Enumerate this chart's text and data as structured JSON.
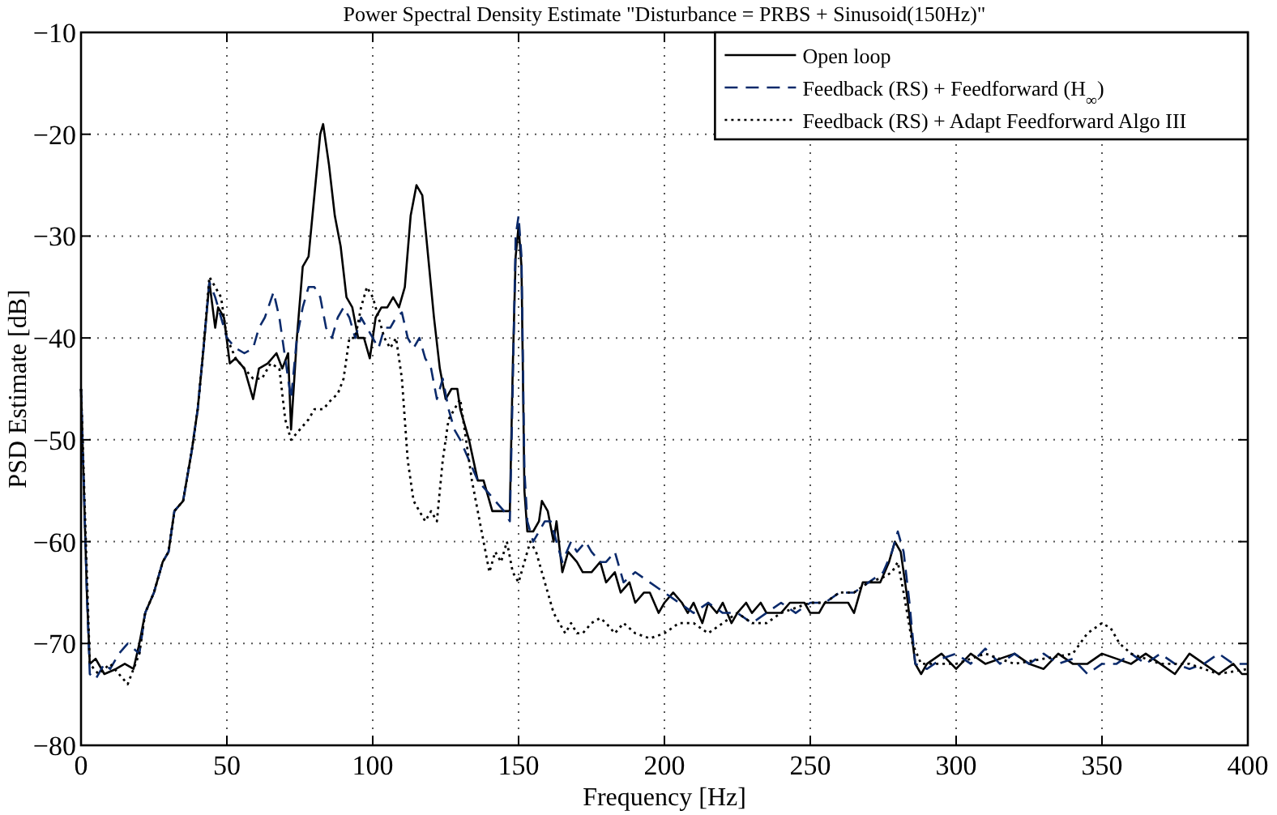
{
  "chart_data": {
    "type": "line",
    "title": "Power Spectral Density Estimate \"Disturbance = PRBS + Sinusoid(150Hz)\"",
    "xlabel": "Frequency [Hz]",
    "ylabel": "PSD Estimate [dB]",
    "xlim": [
      0,
      400
    ],
    "xticks": [
      0,
      50,
      100,
      150,
      200,
      250,
      300,
      350,
      400
    ],
    "ylim": [
      -80,
      -10
    ],
    "yticks": [
      -80,
      -70,
      -60,
      -50,
      -40,
      -30,
      -20,
      -10
    ],
    "grid": true,
    "legend": "top right",
    "series": [
      {
        "name": "Open loop",
        "color": "#000000",
        "line_style": "solid",
        "x": [
          0,
          1,
          2,
          3,
          5,
          8,
          12,
          15,
          18,
          20,
          22,
          25,
          28,
          30,
          32,
          35,
          38,
          40,
          42,
          44,
          46,
          47,
          49,
          51,
          53,
          56,
          59,
          61,
          64,
          67,
          69,
          71,
          72,
          74,
          76,
          78,
          80,
          82,
          83,
          85,
          87,
          89,
          91,
          93,
          95,
          97,
          99,
          101,
          103,
          105,
          107,
          109,
          111,
          113,
          115,
          117,
          119,
          121,
          123,
          125,
          127,
          129,
          130,
          133,
          136,
          138,
          141,
          143,
          145,
          147,
          148,
          149,
          150,
          151,
          152,
          153,
          155,
          157,
          158,
          160,
          162,
          163,
          165,
          167,
          170,
          172,
          175,
          178,
          180,
          183,
          185,
          188,
          190,
          193,
          195,
          198,
          200,
          203,
          206,
          208,
          210,
          213,
          215,
          218,
          220,
          223,
          225,
          228,
          230,
          233,
          235,
          238,
          240,
          243,
          245,
          248,
          250,
          253,
          255,
          258,
          260,
          263,
          265,
          268,
          271,
          274,
          277,
          279,
          281,
          283,
          286,
          288,
          290,
          295,
          300,
          305,
          310,
          315,
          320,
          325,
          330,
          335,
          340,
          345,
          350,
          355,
          360,
          365,
          370,
          375,
          380,
          385,
          390,
          395,
          398,
          400
        ],
        "values": [
          -45,
          -55,
          -65,
          -72,
          -71.5,
          -73,
          -72.5,
          -72,
          -72.5,
          -70,
          -67,
          -65,
          -62,
          -61,
          -57,
          -56,
          -51,
          -47,
          -41,
          -34.5,
          -39,
          -37,
          -38,
          -42.5,
          -42,
          -43,
          -46,
          -43,
          -42.5,
          -41.5,
          -43,
          -41.5,
          -49,
          -40,
          -33,
          -32,
          -26,
          -20,
          -19,
          -23,
          -28,
          -31,
          -36,
          -37,
          -40,
          -40,
          -42,
          -38,
          -37,
          -37,
          -36,
          -37,
          -35,
          -28,
          -25,
          -26,
          -32,
          -38,
          -43,
          -46,
          -45,
          -45,
          -47,
          -50,
          -54,
          -54,
          -57,
          -57,
          -57,
          -57,
          -43,
          -32,
          -29,
          -33,
          -55,
          -59,
          -59,
          -58,
          -56,
          -57,
          -60,
          -58,
          -63,
          -61,
          -62,
          -63,
          -63,
          -62,
          -64,
          -63,
          -65,
          -64,
          -66,
          -65,
          -65,
          -67,
          -66,
          -65,
          -66,
          -67,
          -66,
          -68,
          -66,
          -67,
          -66,
          -68,
          -67,
          -66,
          -67,
          -66,
          -67,
          -67,
          -67,
          -66,
          -66,
          -66,
          -67,
          -67,
          -66,
          -66,
          -66,
          -66,
          -67,
          -64,
          -64,
          -64,
          -62,
          -60,
          -61,
          -65,
          -72,
          -73,
          -72,
          -71,
          -72.5,
          -71,
          -72,
          -71.5,
          -71,
          -72,
          -72.5,
          -71,
          -72,
          -72,
          -71,
          -71.5,
          -72,
          -71,
          -72,
          -73,
          -71,
          -72,
          -73,
          -72,
          -73,
          -73
        ]
      },
      {
        "name": "Feedback (RS) + Feedforward (H$_{∞}$)",
        "color": "#0b2a6b",
        "line_style": "dashed",
        "x": [
          0,
          2,
          3,
          5,
          8,
          10,
          13,
          16,
          20,
          22,
          25,
          28,
          30,
          32,
          35,
          38,
          40,
          42,
          44,
          46,
          50,
          53,
          56,
          59,
          61,
          63,
          66,
          68,
          70,
          72,
          74,
          76,
          78,
          80,
          82,
          84,
          86,
          88,
          90,
          92,
          94,
          96,
          98,
          100,
          102,
          104,
          106,
          108,
          110,
          112,
          114,
          116,
          118,
          120,
          122,
          124,
          126,
          128,
          130,
          133,
          136,
          139,
          142,
          145,
          147,
          148,
          149,
          150,
          151,
          152,
          153,
          155,
          157,
          159,
          161,
          163,
          165,
          168,
          170,
          173,
          175,
          178,
          180,
          183,
          186,
          190,
          195,
          200,
          205,
          210,
          215,
          220,
          225,
          230,
          235,
          240,
          245,
          250,
          255,
          260,
          265,
          270,
          275,
          278,
          280,
          282,
          284,
          286,
          290,
          295,
          300,
          305,
          310,
          315,
          320,
          325,
          330,
          335,
          340,
          345,
          350,
          355,
          360,
          365,
          370,
          375,
          380,
          385,
          390,
          395,
          400
        ],
        "values": [
          -45,
          -65,
          -73,
          -73.5,
          -72,
          -72.5,
          -71,
          -70,
          -71,
          -67,
          -65,
          -62,
          -61,
          -57,
          -56,
          -51,
          -47,
          -41,
          -34.5,
          -36,
          -40,
          -41,
          -41.5,
          -41,
          -39,
          -38,
          -35.5,
          -38,
          -42,
          -46,
          -40,
          -37,
          -35,
          -35,
          -36,
          -39,
          -40,
          -38,
          -37,
          -38,
          -40,
          -38,
          -39,
          -40,
          -41,
          -39,
          -39,
          -38,
          -37.5,
          -40,
          -41,
          -40,
          -42,
          -43,
          -46,
          -44,
          -47,
          -49,
          -50,
          -52,
          -54,
          -55,
          -56,
          -57,
          -58,
          -45,
          -30,
          -28,
          -32,
          -53,
          -58,
          -60,
          -59,
          -58,
          -58,
          -60,
          -62,
          -60,
          -61,
          -60,
          -61,
          -62,
          -62,
          -61,
          -64,
          -63,
          -64,
          -65,
          -66,
          -67,
          -66,
          -67,
          -67,
          -68,
          -67,
          -66,
          -67,
          -66,
          -66,
          -65,
          -65,
          -64,
          -63,
          -61,
          -59,
          -61,
          -66,
          -72,
          -72.5,
          -71.5,
          -71,
          -72,
          -70.5,
          -72,
          -71,
          -72,
          -71,
          -72,
          -71.5,
          -73,
          -72,
          -72,
          -71,
          -72,
          -71,
          -72,
          -72.5,
          -72,
          -71,
          -72,
          -72
        ]
      },
      {
        "name": "Feedback (RS) + Adapt Feedforward Algo III",
        "color": "#000000",
        "line_style": "dotted",
        "x": [
          0,
          3,
          6,
          10,
          13,
          16,
          20,
          22,
          25,
          28,
          30,
          32,
          35,
          38,
          40,
          42,
          44,
          46,
          48,
          50,
          53,
          56,
          59,
          62,
          65,
          68,
          70,
          72,
          75,
          78,
          80,
          83,
          86,
          88,
          90,
          92,
          94,
          96,
          98,
          100,
          102,
          104,
          106,
          108,
          110,
          112,
          114,
          116,
          118,
          120,
          122,
          124,
          126,
          128,
          130,
          132,
          134,
          136,
          138,
          140,
          142,
          144,
          146,
          148,
          150,
          152,
          154,
          156,
          158,
          160,
          162,
          164,
          166,
          168,
          170,
          172,
          175,
          178,
          180,
          183,
          186,
          190,
          195,
          200,
          205,
          210,
          215,
          220,
          225,
          230,
          235,
          240,
          245,
          250,
          255,
          260,
          265,
          270,
          275,
          278,
          280,
          282,
          285,
          288,
          290,
          300,
          310,
          320,
          330,
          340,
          345,
          350,
          353,
          356,
          360,
          370,
          380,
          390,
          400
        ],
        "values": [
          -45,
          -72,
          -73,
          -72,
          -73,
          -74,
          -71,
          -67,
          -65,
          -62,
          -61,
          -57,
          -56,
          -51,
          -47,
          -41,
          -34,
          -35,
          -36,
          -40,
          -42,
          -43,
          -44,
          -44,
          -42.5,
          -43,
          -48,
          -50,
          -49,
          -48,
          -47,
          -47,
          -46,
          -45.5,
          -44,
          -40,
          -40,
          -37,
          -35,
          -36,
          -38,
          -40,
          -41,
          -40,
          -44,
          -52,
          -56,
          -57,
          -58,
          -57,
          -58,
          -52,
          -48,
          -47,
          -46,
          -50,
          -54,
          -57,
          -60,
          -63,
          -61,
          -62,
          -60,
          -63,
          -64,
          -62,
          -60,
          -61,
          -63,
          -65,
          -67,
          -68,
          -69,
          -68,
          -69,
          -69,
          -68,
          -67.5,
          -68,
          -69,
          -68,
          -69,
          -69.5,
          -69,
          -68,
          -68,
          -69,
          -68,
          -67,
          -68,
          -68,
          -67,
          -66.5,
          -66,
          -66,
          -65,
          -65,
          -64,
          -63.5,
          -63,
          -62,
          -65,
          -70,
          -72,
          -72,
          -72,
          -71,
          -72,
          -71.5,
          -71,
          -69,
          -68,
          -68.5,
          -70,
          -71,
          -72,
          -72,
          -73,
          -72.5
        ]
      }
    ]
  }
}
